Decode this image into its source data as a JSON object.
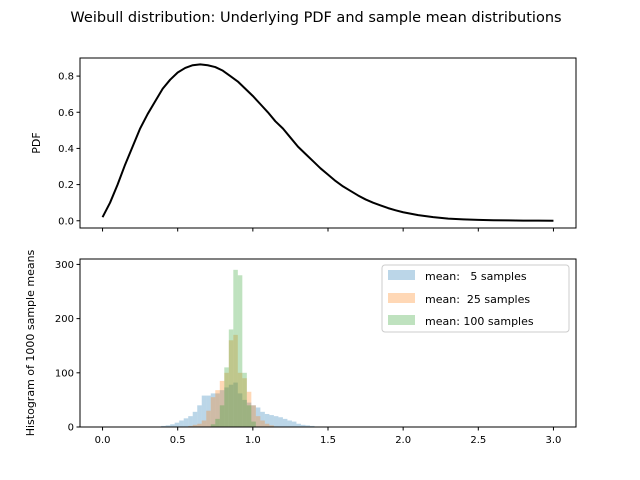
{
  "figure": {
    "suptitle": "Weibull distribution: Underlying PDF and sample mean distributions"
  },
  "chart_data": [
    {
      "type": "line",
      "ylabel": "PDF",
      "xlim": [
        -0.15,
        3.15
      ],
      "ylim": [
        -0.04,
        0.9
      ],
      "yticks": [
        0.0,
        0.2,
        0.4,
        0.6,
        0.8
      ],
      "ytick_labels": [
        "0.0",
        "0.2",
        "0.4",
        "0.6",
        "0.8"
      ],
      "xticks": [
        0.0,
        0.5,
        1.0,
        1.5,
        2.0,
        2.5,
        3.0
      ],
      "series": [
        {
          "color": "#000000",
          "x": [
            0.0,
            0.05,
            0.1,
            0.15,
            0.2,
            0.25,
            0.3,
            0.35,
            0.4,
            0.45,
            0.5,
            0.55,
            0.6,
            0.65,
            0.7,
            0.75,
            0.8,
            0.85,
            0.9,
            0.95,
            1.0,
            1.05,
            1.1,
            1.15,
            1.2,
            1.25,
            1.3,
            1.35,
            1.4,
            1.45,
            1.5,
            1.55,
            1.6,
            1.65,
            1.7,
            1.75,
            1.8,
            1.85,
            1.9,
            1.95,
            2.0,
            2.1,
            2.2,
            2.3,
            2.4,
            2.5,
            2.6,
            2.7,
            2.8,
            2.9,
            3.0
          ],
          "y": [
            0.02,
            0.1,
            0.2,
            0.31,
            0.41,
            0.51,
            0.59,
            0.66,
            0.73,
            0.78,
            0.82,
            0.845,
            0.86,
            0.865,
            0.86,
            0.85,
            0.83,
            0.8,
            0.77,
            0.73,
            0.69,
            0.645,
            0.6,
            0.55,
            0.51,
            0.46,
            0.41,
            0.37,
            0.33,
            0.29,
            0.255,
            0.22,
            0.19,
            0.165,
            0.14,
            0.118,
            0.1,
            0.085,
            0.07,
            0.058,
            0.047,
            0.031,
            0.02,
            0.012,
            0.008,
            0.005,
            0.003,
            0.002,
            0.001,
            0.001,
            0.0
          ]
        }
      ]
    },
    {
      "type": "bar",
      "ylabel": "Histogram of 1000 sample means",
      "xlim": [
        -0.15,
        3.15
      ],
      "ylim": [
        0,
        310
      ],
      "yticks": [
        0,
        100,
        200,
        300
      ],
      "ytick_labels": [
        "0",
        "100",
        "200",
        "300"
      ],
      "xticks": [
        0.0,
        0.5,
        1.0,
        1.5,
        2.0,
        2.5,
        3.0
      ],
      "xtick_labels": [
        "0.0",
        "0.5",
        "1.0",
        "1.5",
        "2.0",
        "2.5",
        "3.0"
      ],
      "bin_width": 0.03,
      "legend_position": "upper right",
      "series": [
        {
          "name": "mean:   5 samples",
          "color": "#1f77b4",
          "bin_starts": [
            0.39,
            0.42,
            0.45,
            0.48,
            0.51,
            0.54,
            0.57,
            0.6,
            0.63,
            0.66,
            0.69,
            0.72,
            0.75,
            0.78,
            0.81,
            0.84,
            0.87,
            0.9,
            0.93,
            0.96,
            0.99,
            1.02,
            1.05,
            1.08,
            1.11,
            1.14,
            1.17,
            1.2,
            1.23,
            1.26,
            1.29,
            1.32,
            1.35,
            1.38
          ],
          "values": [
            2,
            3,
            5,
            8,
            12,
            16,
            20,
            28,
            40,
            58,
            58,
            62,
            62,
            68,
            73,
            78,
            82,
            62,
            50,
            45,
            40,
            36,
            28,
            24,
            22,
            20,
            18,
            15,
            12,
            10,
            6,
            4,
            3,
            2
          ]
        },
        {
          "name": "mean:  25 samples",
          "color": "#ff7f0e",
          "bin_starts": [
            0.57,
            0.6,
            0.63,
            0.66,
            0.69,
            0.72,
            0.75,
            0.78,
            0.81,
            0.84,
            0.87,
            0.9,
            0.93,
            0.96,
            0.99,
            1.02,
            1.05,
            1.08,
            1.11,
            1.14
          ],
          "values": [
            2,
            4,
            6,
            12,
            30,
            55,
            68,
            85,
            100,
            160,
            170,
            100,
            90,
            65,
            40,
            20,
            12,
            6,
            3,
            1
          ]
        },
        {
          "name": "mean: 100 samples",
          "color": "#2ca02c",
          "bin_starts": [
            0.72,
            0.75,
            0.78,
            0.81,
            0.84,
            0.87,
            0.9,
            0.93,
            0.96,
            0.99
          ],
          "values": [
            5,
            15,
            40,
            110,
            180,
            290,
            280,
            100,
            40,
            10
          ]
        }
      ]
    }
  ]
}
